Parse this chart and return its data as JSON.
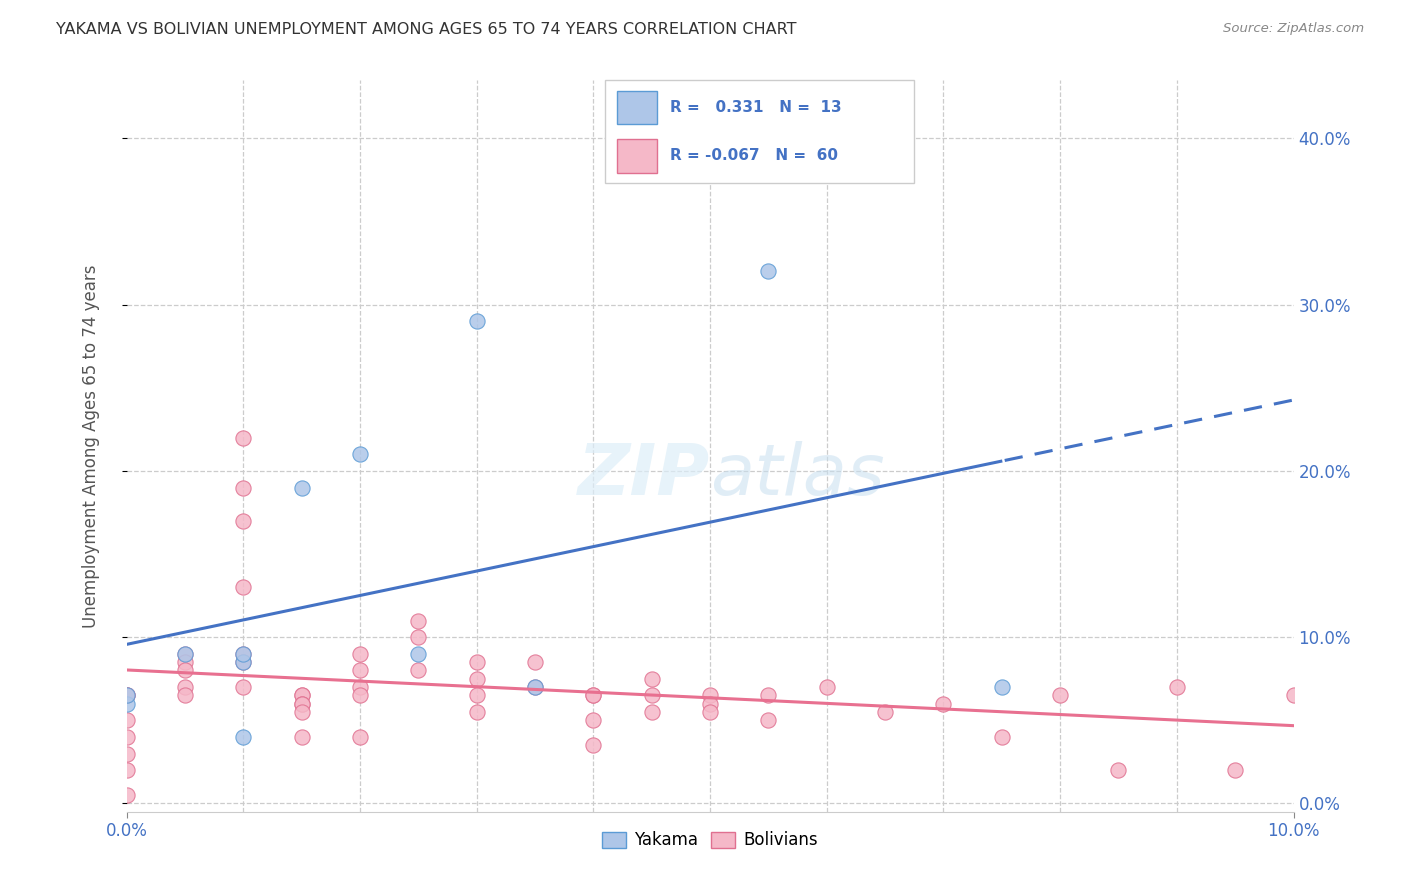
{
  "title": "YAKAMA VS BOLIVIAN UNEMPLOYMENT AMONG AGES 65 TO 74 YEARS CORRELATION CHART",
  "source": "Source: ZipAtlas.com",
  "ylabel": "Unemployment Among Ages 65 to 74 years",
  "xlim": [
    0.0,
    0.1
  ],
  "ylim": [
    -0.005,
    0.435
  ],
  "yticks": [
    0.0,
    0.1,
    0.2,
    0.3,
    0.4
  ],
  "yakama_color": "#aec6e8",
  "bolivian_color": "#f5b8c8",
  "yakama_edge": "#5b9bd5",
  "bolivian_edge": "#e07090",
  "trend_yakama_color": "#4472c4",
  "trend_bolivian_color": "#e87090",
  "legend_yakama_label": "Yakama",
  "legend_bolivian_label": "Bolivians",
  "R_yakama": 0.331,
  "N_yakama": 13,
  "R_bolivian": -0.067,
  "N_bolivian": 60,
  "yakama_x": [
    0.0,
    0.0,
    0.005,
    0.01,
    0.01,
    0.01,
    0.015,
    0.02,
    0.025,
    0.03,
    0.035,
    0.075,
    0.055
  ],
  "yakama_y": [
    0.06,
    0.065,
    0.09,
    0.085,
    0.09,
    0.04,
    0.19,
    0.21,
    0.09,
    0.29,
    0.07,
    0.07,
    0.32
  ],
  "bolivian_x": [
    0.0,
    0.0,
    0.0,
    0.0,
    0.0,
    0.0,
    0.0,
    0.005,
    0.005,
    0.005,
    0.005,
    0.005,
    0.01,
    0.01,
    0.01,
    0.01,
    0.01,
    0.01,
    0.01,
    0.015,
    0.015,
    0.015,
    0.015,
    0.015,
    0.015,
    0.02,
    0.02,
    0.02,
    0.02,
    0.02,
    0.025,
    0.025,
    0.025,
    0.03,
    0.03,
    0.03,
    0.03,
    0.035,
    0.035,
    0.04,
    0.04,
    0.04,
    0.04,
    0.045,
    0.045,
    0.045,
    0.05,
    0.05,
    0.05,
    0.055,
    0.055,
    0.06,
    0.065,
    0.07,
    0.075,
    0.08,
    0.085,
    0.09,
    0.095,
    0.1
  ],
  "bolivian_y": [
    0.065,
    0.065,
    0.05,
    0.04,
    0.03,
    0.02,
    0.005,
    0.09,
    0.085,
    0.08,
    0.07,
    0.065,
    0.22,
    0.19,
    0.17,
    0.13,
    0.09,
    0.085,
    0.07,
    0.065,
    0.065,
    0.06,
    0.06,
    0.055,
    0.04,
    0.09,
    0.08,
    0.07,
    0.065,
    0.04,
    0.11,
    0.1,
    0.08,
    0.085,
    0.075,
    0.065,
    0.055,
    0.085,
    0.07,
    0.065,
    0.065,
    0.05,
    0.035,
    0.075,
    0.065,
    0.055,
    0.065,
    0.06,
    0.055,
    0.065,
    0.05,
    0.07,
    0.055,
    0.06,
    0.04,
    0.065,
    0.02,
    0.07,
    0.02,
    0.065
  ]
}
